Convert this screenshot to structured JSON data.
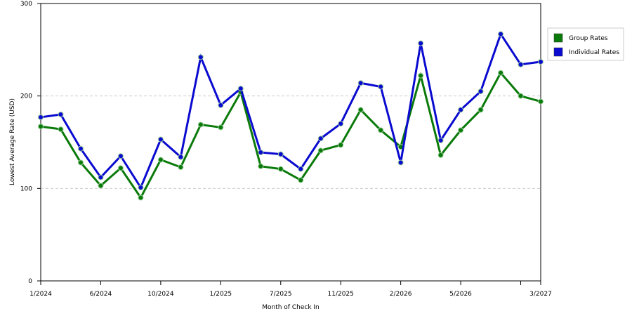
{
  "chart_data": {
    "type": "line",
    "x_label": "Month of Check In",
    "y_label": "Lowest Average Rate (USD)",
    "categories": [
      "1/2024",
      null,
      null,
      "6/2024",
      null,
      null,
      "10/2024",
      null,
      null,
      "1/2025",
      null,
      null,
      "7/2025",
      null,
      null,
      "11/2025",
      null,
      null,
      "2/2026",
      null,
      null,
      "5/2026",
      null,
      null,
      null,
      "3/2027"
    ],
    "series": [
      {
        "name": "Group Rates",
        "color": "#0a7a0a",
        "values": [
          167,
          164,
          128,
          103,
          122,
          90,
          131,
          123,
          169,
          166,
          204,
          124,
          121,
          109,
          141,
          147,
          185,
          163,
          145,
          222,
          136,
          163,
          185,
          225,
          200,
          194
        ]
      },
      {
        "name": "Individual Rates",
        "color": "#0a0ad0",
        "values": [
          177,
          180,
          143,
          112,
          135,
          101,
          153,
          134,
          242,
          190,
          208,
          139,
          137,
          121,
          154,
          170,
          214,
          210,
          128,
          257,
          152,
          185,
          205,
          267,
          234,
          237
        ]
      }
    ],
    "ylim": [
      0,
      300
    ],
    "yticks": [
      0,
      100,
      200,
      300
    ],
    "grid": true,
    "legend": "right"
  }
}
